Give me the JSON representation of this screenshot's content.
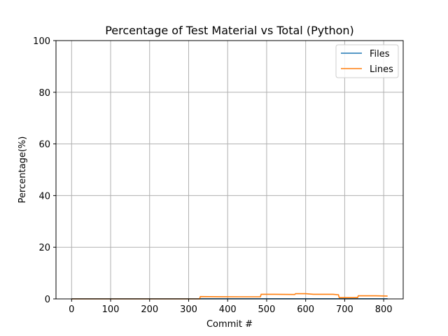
{
  "chart_data": {
    "type": "line",
    "title": "Percentage of Test Material vs Total (Python)",
    "xlabel": "Commit #",
    "ylabel": "Percentage(%)",
    "xlim": [
      -40,
      850
    ],
    "ylim": [
      0,
      100
    ],
    "xticks": [
      0,
      100,
      200,
      300,
      400,
      500,
      600,
      700,
      800
    ],
    "yticks": [
      0,
      20,
      40,
      60,
      80,
      100
    ],
    "grid": true,
    "legend_position": "top-right",
    "series": [
      {
        "name": "Files",
        "color": "#1f77b4",
        "x": [
          0,
          810
        ],
        "y": [
          0.05,
          0.05
        ]
      },
      {
        "name": "Lines",
        "color": "#ff7f0e",
        "x": [
          0,
          328,
          330,
          380,
          430,
          484,
          486,
          520,
          572,
          574,
          600,
          620,
          670,
          684,
          686,
          700,
          733,
          735,
          780,
          810
        ],
        "y": [
          0.0,
          0.0,
          0.9,
          0.85,
          0.8,
          0.8,
          1.8,
          1.8,
          1.7,
          2.0,
          2.0,
          1.8,
          1.8,
          1.6,
          0.5,
          0.5,
          0.5,
          1.2,
          1.2,
          1.1
        ]
      }
    ]
  }
}
